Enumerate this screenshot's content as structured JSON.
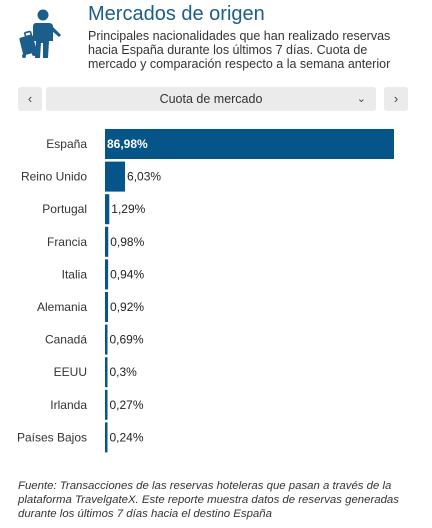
{
  "header": {
    "title": "Mercados de origen",
    "subtitle": "Principales nacionalidades que han realizado reservas hacia España durante los últimos 7 días. Cuota de mercado y comparación respecto a la semana anterior",
    "logo_icon": "traveler-luggage-icon"
  },
  "controls": {
    "prev_label": "‹",
    "next_label": "›",
    "select_value": "Cuota de mercado",
    "chevron": "⌄"
  },
  "colors": {
    "bar": "#055588",
    "accent": "#1b5e8c",
    "label_in_bar": "#ffffff"
  },
  "chart_data": {
    "type": "bar",
    "orientation": "horizontal",
    "categories": [
      "España",
      "Reino Unido",
      "Portugal",
      "Francia",
      "Italia",
      "Alemania",
      "Canadá",
      "EEUU",
      "Irlanda",
      "Países Bajos"
    ],
    "values": [
      86.98,
      6.03,
      1.29,
      0.98,
      0.94,
      0.92,
      0.69,
      0.3,
      0.27,
      0.24
    ],
    "value_labels": [
      "86,98%",
      "6,03%",
      "1,29%",
      "0,98%",
      "0,94%",
      "0,92%",
      "0,69%",
      "0,3%",
      "0,27%",
      "0,24%"
    ],
    "xlim": [
      0,
      86.98
    ],
    "grid": false,
    "legend": "none"
  },
  "footnote": "Fuente: Transacciones de las reservas hoteleras que pasan a través de la plataforma TravelgateX. Este reporte muestra datos de reservas generadas durante los últimos 7 días hacia el destino España"
}
